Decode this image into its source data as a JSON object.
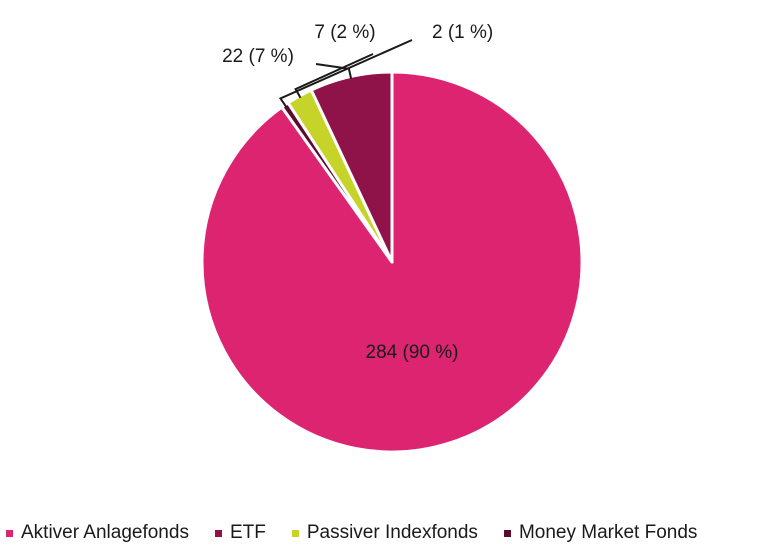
{
  "chart_data": {
    "type": "pie",
    "title": "",
    "series": [
      {
        "name": "Aktiver Anlagefonds",
        "value": 284,
        "label": "284 (90 %)",
        "color": "#dc2470"
      },
      {
        "name": "Money Market Fonds",
        "value": 2,
        "label": "2 (1 %)",
        "color": "#5c0a2e"
      },
      {
        "name": "Passiver Indexfonds",
        "value": 7,
        "label": "7 (2 %)",
        "color": "#c6d42a"
      },
      {
        "name": "ETF",
        "value": 22,
        "label": "22 (7 %)",
        "color": "#8f1249"
      }
    ],
    "legend": {
      "placement": "bottom",
      "items": [
        "Aktiver Anlagefonds",
        "ETF",
        "Passiver Indexfonds",
        "Money Market Fonds"
      ]
    }
  }
}
